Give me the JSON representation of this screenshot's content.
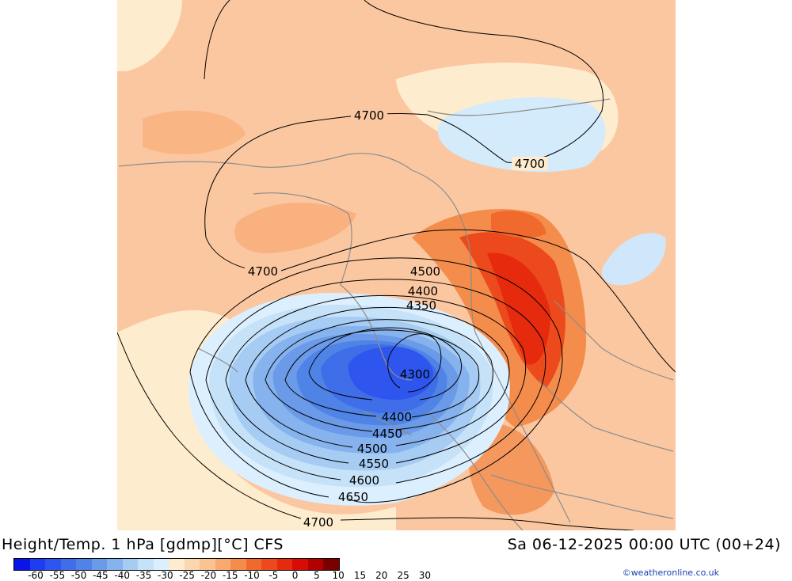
{
  "title": "Height/Temp. 1 hPa [gdmp][°C] CFS",
  "valid_time": "Sa 06-12-2025 00:00 UTC (00+24)",
  "credit": "©weatheronline.co.uk",
  "contour_labels": [
    "4700",
    "4700",
    "4700",
    "4500",
    "4400",
    "4350",
    "4300",
    "4400",
    "4450",
    "4500",
    "4550",
    "4600",
    "4650",
    "4700"
  ],
  "colorbar": {
    "colors": [
      "#0a14e6",
      "#1e3cf0",
      "#2e56ee",
      "#3f6ee8",
      "#4f84e6",
      "#6a9ae8",
      "#86b2ee",
      "#a6ccf4",
      "#c6e2f8",
      "#dcefff",
      "#fdeccd",
      "#fcd7ae",
      "#fbc392",
      "#f8a870",
      "#f48c4c",
      "#f06a2e",
      "#ec4a1c",
      "#e62a0e",
      "#d80c06",
      "#b20000",
      "#7a0000"
    ],
    "tick_labels": [
      "-60",
      "-55",
      "-50",
      "-45",
      "-40",
      "-35",
      "-30",
      "-25",
      "-20",
      "-15",
      "-10",
      "-5",
      "0",
      "5",
      "10",
      "15",
      "20",
      "25",
      "30"
    ]
  }
}
